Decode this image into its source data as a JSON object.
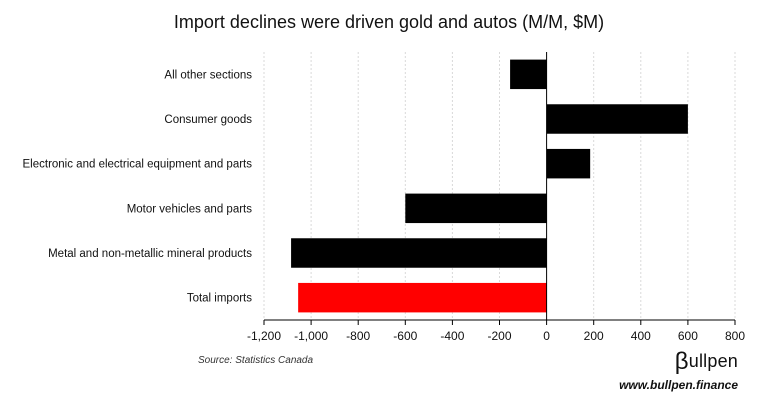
{
  "chart_data": {
    "type": "bar",
    "orientation": "horizontal",
    "title": "Import declines were driven gold and autos (M/M, $M)",
    "categories": [
      "All other sections",
      "Consumer goods",
      "Electronic and electrical equipment and parts",
      "Motor vehicles and parts",
      "Metal and non-metallic mineral products",
      "Total imports"
    ],
    "values": [
      -155,
      600,
      185,
      -600,
      -1085,
      -1055
    ],
    "bar_colors": [
      "#000000",
      "#000000",
      "#000000",
      "#000000",
      "#000000",
      "#ff0000"
    ],
    "xlim": [
      -1200,
      800
    ],
    "xticks": [
      -1200,
      -1000,
      -800,
      -600,
      -400,
      -200,
      0,
      200,
      400,
      600,
      800
    ],
    "xtick_labels": [
      "-1,200",
      "-1,000",
      "-800",
      "-600",
      "-400",
      "-200",
      "0",
      "200",
      "400",
      "600",
      "800"
    ],
    "grid": "vertical dashed"
  },
  "source": "Source: Statistics Canada",
  "brand": {
    "logo_beta": "β",
    "logo_rest": "ullpen",
    "url": "www.bullpen.finance"
  }
}
